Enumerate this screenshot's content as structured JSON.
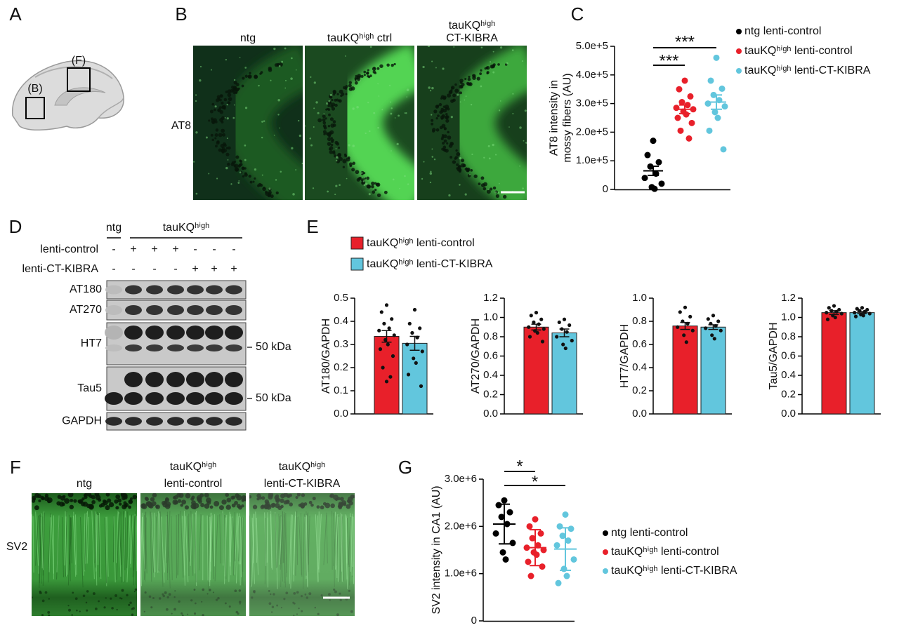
{
  "panel_labels": [
    "A",
    "B",
    "C",
    "D",
    "E",
    "F",
    "G"
  ],
  "brain_diagram": {
    "regions": [
      "(B)",
      "(F)"
    ]
  },
  "image_b": {
    "columns": [
      [
        "ntg"
      ],
      [
        "tauKQʰⁱᵍʰ ctrl"
      ],
      [
        "tauKQʰⁱᵍʰ",
        "CT-KIBRA"
      ]
    ],
    "row_label": "AT8"
  },
  "western_blot": {
    "groups": [
      "ntg",
      "tauKQʰⁱᵍʰ"
    ],
    "conditions": [
      {
        "label": "lenti-control",
        "lanes": [
          "-",
          "+",
          "+",
          "+",
          "-",
          "-",
          "-"
        ]
      },
      {
        "label": "lenti-CT-KIBRA",
        "lanes": [
          "-",
          "-",
          "-",
          "-",
          "+",
          "+",
          "+"
        ]
      }
    ],
    "bands": [
      "AT180",
      "AT270",
      "HT7",
      "Tau5",
      "GAPDH"
    ],
    "markers": [
      "50 kDa",
      "50 kDa"
    ]
  },
  "image_f": {
    "columns": [
      [
        "ntg"
      ],
      [
        "tauKQʰⁱᵍʰ",
        "lenti-control"
      ],
      [
        "tauKQʰⁱᵍʰ",
        "lenti-CT-KIBRA"
      ]
    ],
    "row_label": "SV2"
  },
  "chart_data": [
    {
      "type": "strip",
      "ylabel": [
        "AT8 intensity in",
        "mossy fibers (AU)"
      ],
      "ylim": [
        0,
        500000
      ],
      "yticks": [
        0,
        {
          "value": 100000,
          "label": "1.0e+5"
        },
        {
          "value": 200000,
          "label": "2.0e+5"
        },
        {
          "value": 300000,
          "label": "3.0e+5"
        },
        {
          "value": 400000,
          "label": "4.0e+5"
        },
        {
          "value": 500000,
          "label": "5.0e+5"
        }
      ],
      "annotations": [
        "***",
        "***"
      ],
      "series": [
        {
          "name": "ntg lenti-control",
          "color": "#000000",
          "values": [
            170000,
            120000,
            95000,
            80000,
            55000,
            40000,
            20000,
            8000,
            2000
          ],
          "mean": 65000,
          "error": 16000
        },
        {
          "name": "tauKQʰⁱᵍʰ lenti-control",
          "color": "#e8202a",
          "values": [
            380000,
            350000,
            325000,
            305000,
            295000,
            285000,
            280000,
            272000,
            262000,
            250000,
            232000,
            205000,
            178000
          ],
          "mean": 280000,
          "error": 15000
        },
        {
          "name": "tauKQʰⁱᵍʰ lenti-CT-KIBRA",
          "color": "#62c6dd",
          "values": [
            460000,
            380000,
            352000,
            330000,
            312000,
            300000,
            290000,
            270000,
            250000,
            205000,
            140000
          ],
          "mean": 305000,
          "error": 25000
        }
      ]
    },
    {
      "type": "bar",
      "ylabel": "AT180/GAPDH",
      "ylim": [
        0,
        0.5
      ],
      "yticks": [
        {
          "value": 0,
          "label": "0.0"
        },
        0.1,
        0.2,
        0.3,
        0.4,
        0.5
      ],
      "series": [
        {
          "name": "tauKQʰⁱᵍʰ lenti-control",
          "color": "#e8202a",
          "values": [
            0.335
          ],
          "errors": [
            0.025
          ],
          "points": [
            [
              0.47,
              0.44,
              0.41,
              0.39,
              0.37,
              0.36,
              0.34,
              0.32,
              0.3,
              0.28,
              0.25,
              0.2,
              0.16,
              0.14
            ]
          ]
        },
        {
          "name": "tauKQʰⁱᵍʰ lenti-CT-KIBRA",
          "color": "#62c6dd",
          "values": [
            0.305
          ],
          "errors": [
            0.03
          ],
          "points": [
            [
              0.45,
              0.39,
              0.37,
              0.35,
              0.33,
              0.3,
              0.27,
              0.24,
              0.22,
              0.17,
              0.12
            ]
          ]
        }
      ]
    },
    {
      "type": "bar",
      "ylabel": "AT270/GAPDH",
      "ylim": [
        0,
        1.2
      ],
      "yticks": [
        {
          "value": 0,
          "label": "0.0"
        },
        0.2,
        0.4,
        0.6,
        0.8,
        {
          "value": 1,
          "label": "1.0"
        },
        1.2
      ],
      "series": [
        {
          "color": "#e8202a",
          "values": [
            0.9
          ],
          "errors": [
            0.03
          ],
          "points": [
            [
              1.05,
              1.02,
              0.98,
              0.95,
              0.93,
              0.9,
              0.88,
              0.86,
              0.84,
              0.8,
              0.75
            ]
          ]
        },
        {
          "color": "#62c6dd",
          "values": [
            0.84
          ],
          "errors": [
            0.04
          ],
          "points": [
            [
              0.98,
              0.95,
              0.92,
              0.88,
              0.85,
              0.8,
              0.76,
              0.72,
              0.68
            ]
          ]
        }
      ]
    },
    {
      "type": "bar",
      "ylabel": "HT7/GAPDH",
      "ylim": [
        0,
        1
      ],
      "yticks": [
        {
          "value": 0,
          "label": "0.0"
        },
        0.2,
        0.4,
        0.6,
        0.8,
        {
          "value": 1,
          "label": "1.0"
        }
      ],
      "series": [
        {
          "color": "#e8202a",
          "values": [
            0.76
          ],
          "errors": [
            0.03
          ],
          "points": [
            [
              0.92,
              0.88,
              0.84,
              0.8,
              0.78,
              0.75,
              0.72,
              0.68,
              0.62
            ]
          ]
        },
        {
          "color": "#62c6dd",
          "values": [
            0.75
          ],
          "errors": [
            0.02
          ],
          "points": [
            [
              0.85,
              0.82,
              0.8,
              0.78,
              0.76,
              0.74,
              0.72,
              0.68,
              0.65
            ]
          ]
        }
      ]
    },
    {
      "type": "bar",
      "ylabel": "Tau5/GAPDH",
      "ylim": [
        0,
        1.2
      ],
      "yticks": [
        {
          "value": 0,
          "label": "0.0"
        },
        0.2,
        0.4,
        0.6,
        0.8,
        {
          "value": 1,
          "label": "1.0"
        },
        1.2
      ],
      "series": [
        {
          "color": "#e8202a",
          "values": [
            1.05
          ],
          "errors": [
            0.02
          ],
          "points": [
            [
              1.12,
              1.1,
              1.08,
              1.07,
              1.06,
              1.05,
              1.04,
              1.02,
              1.0,
              0.98
            ]
          ]
        },
        {
          "color": "#62c6dd",
          "values": [
            1.05
          ],
          "errors": [
            0.01
          ],
          "points": [
            [
              1.1,
              1.09,
              1.08,
              1.07,
              1.06,
              1.05,
              1.04,
              1.03,
              1.02,
              1.01
            ]
          ]
        }
      ]
    },
    {
      "type": "strip",
      "ylabel": "SV2 intensity in CA1 (AU)",
      "ylim": [
        0,
        3000000
      ],
      "yticks": [
        0,
        {
          "value": 1000000,
          "label": "1.0e+6"
        },
        {
          "value": 2000000,
          "label": "2.0e+6"
        },
        {
          "value": 3000000,
          "label": "3.0e+6"
        }
      ],
      "annotations": [
        "*",
        "*"
      ],
      "series": [
        {
          "name": "ntg lenti-control",
          "color": "#000000",
          "values": [
            2550000,
            2450000,
            2300000,
            2200000,
            2050000,
            1850000,
            1650000,
            1450000,
            1300000
          ],
          "mean": 2050000,
          "error": 420000
        },
        {
          "name": "tauKQʰⁱᵍʰ lenti-control",
          "color": "#e8202a",
          "values": [
            2150000,
            2000000,
            1850000,
            1750000,
            1600000,
            1550000,
            1500000,
            1450000,
            1400000,
            1250000,
            1150000,
            950000
          ],
          "mean": 1550000,
          "error": 380000
        },
        {
          "name": "tauKQʰⁱᵍʰ lenti-CT-KIBRA",
          "color": "#62c6dd",
          "values": [
            2250000,
            2000000,
            1950000,
            1800000,
            1700000,
            1600000,
            1300000,
            1100000,
            950000,
            800000
          ],
          "mean": 1520000,
          "error": 450000
        }
      ]
    }
  ]
}
